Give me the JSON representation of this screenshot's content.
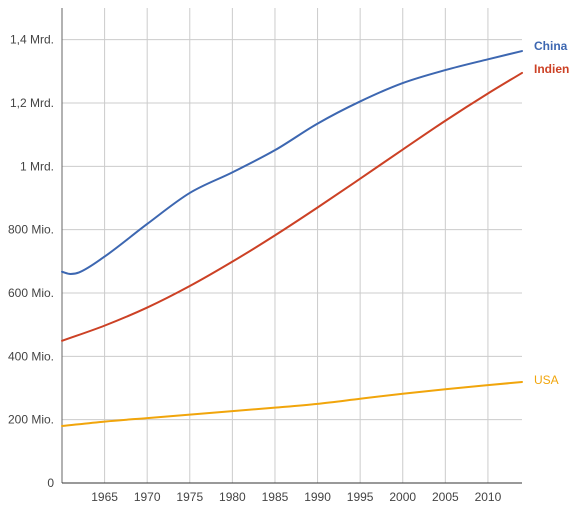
{
  "chart_data": {
    "type": "line",
    "title": "",
    "xlabel": "",
    "ylabel": "",
    "xlim": [
      1960,
      2014
    ],
    "ylim": [
      0,
      1500000000
    ],
    "grid": true,
    "legend": "inline-right",
    "x_ticks": [
      1965,
      1970,
      1975,
      1980,
      1985,
      1990,
      1995,
      2000,
      2005,
      2010
    ],
    "x_tick_labels": [
      "1965",
      "1970",
      "1975",
      "1980",
      "1985",
      "1990",
      "1995",
      "2000",
      "2005",
      "2010"
    ],
    "y_ticks": [
      0,
      200000000,
      400000000,
      600000000,
      800000000,
      1000000000,
      1200000000,
      1400000000
    ],
    "y_tick_labels": [
      "0",
      "200 Mio.",
      "400 Mio.",
      "600 Mio.",
      "800 Mio.",
      "1 Mrd.",
      "1,2 Mrd.",
      "1,4 Mrd."
    ],
    "series": [
      {
        "name": "China",
        "color": "#3d67b1",
        "x": [
          1960,
          1961,
          1962,
          1965,
          1970,
          1975,
          1980,
          1985,
          1990,
          1995,
          2000,
          2005,
          2010,
          2014
        ],
        "values": [
          667000000,
          660000000,
          665000000,
          715000000,
          818000000,
          916000000,
          981000000,
          1051000000,
          1135000000,
          1205000000,
          1263000000,
          1304000000,
          1338000000,
          1364000000
        ]
      },
      {
        "name": "Indien",
        "color": "#cc4125",
        "x": [
          1960,
          1965,
          1970,
          1975,
          1980,
          1985,
          1990,
          1995,
          2000,
          2005,
          2010,
          2014
        ],
        "values": [
          449000000,
          497000000,
          554000000,
          622000000,
          699000000,
          782000000,
          870000000,
          961000000,
          1053000000,
          1144000000,
          1230000000,
          1295000000
        ]
      },
      {
        "name": "USA",
        "color": "#f1a50b",
        "x": [
          1960,
          1965,
          1970,
          1975,
          1980,
          1985,
          1990,
          1995,
          2000,
          2005,
          2010,
          2014
        ],
        "values": [
          180000000,
          194000000,
          205000000,
          216000000,
          227000000,
          238000000,
          250000000,
          266000000,
          282000000,
          296000000,
          309000000,
          319000000
        ]
      }
    ]
  }
}
